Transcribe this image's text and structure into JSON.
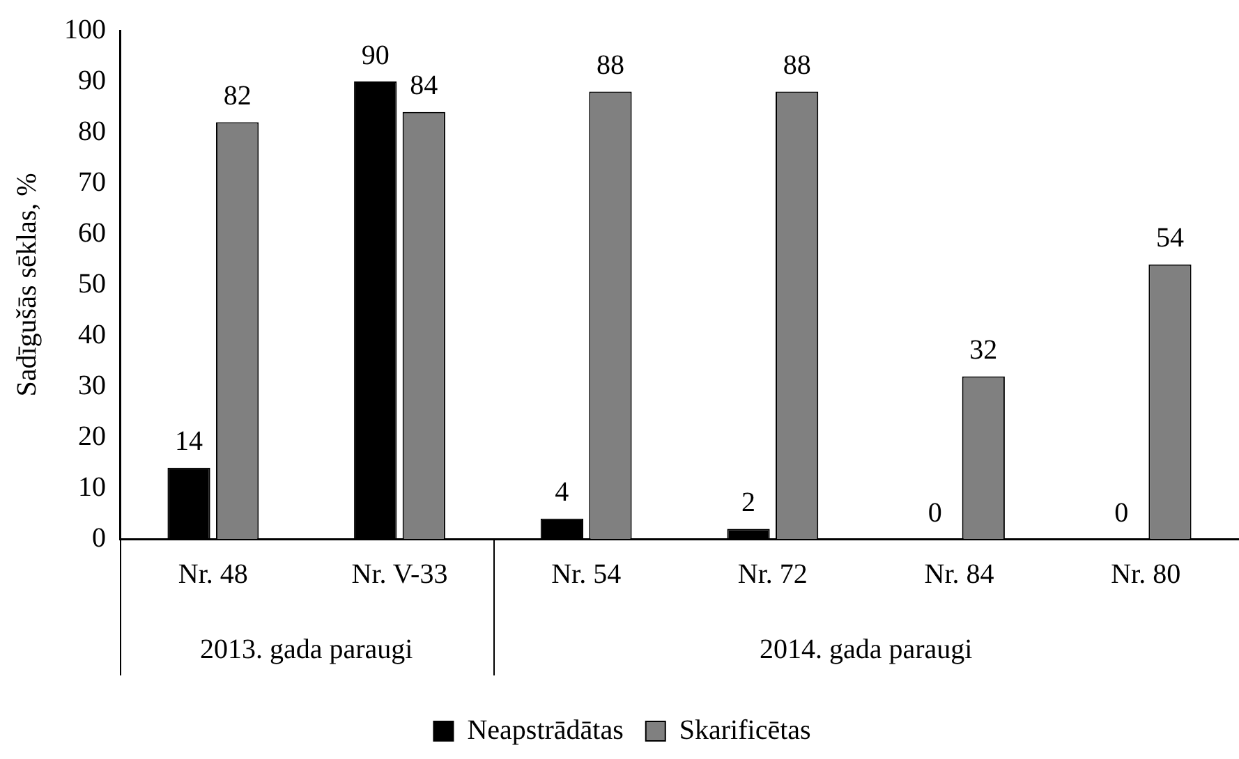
{
  "chart_data": {
    "type": "bar",
    "ylabel": "Sadīgušās sēklas, %",
    "categories": [
      "Nr. 48",
      "Nr. V-33",
      "Nr. 54",
      "Nr. 72",
      "Nr. 84",
      "Nr. 80"
    ],
    "series": [
      {
        "name": "Neapstrādātas",
        "color": "#000000",
        "values": [
          14,
          90,
          4,
          2,
          0,
          0
        ]
      },
      {
        "name": "Skarificētas",
        "color": "#808080",
        "values": [
          82,
          84,
          88,
          88,
          32,
          54
        ]
      }
    ],
    "ylim": [
      0,
      100
    ],
    "yticks": [
      0,
      10,
      20,
      30,
      40,
      50,
      60,
      70,
      80,
      90,
      100
    ],
    "annotations": [
      "2013. gada paraugi",
      "2014. gada paraugi"
    ],
    "data_labels": true,
    "grid": false,
    "legend": "bottom"
  }
}
